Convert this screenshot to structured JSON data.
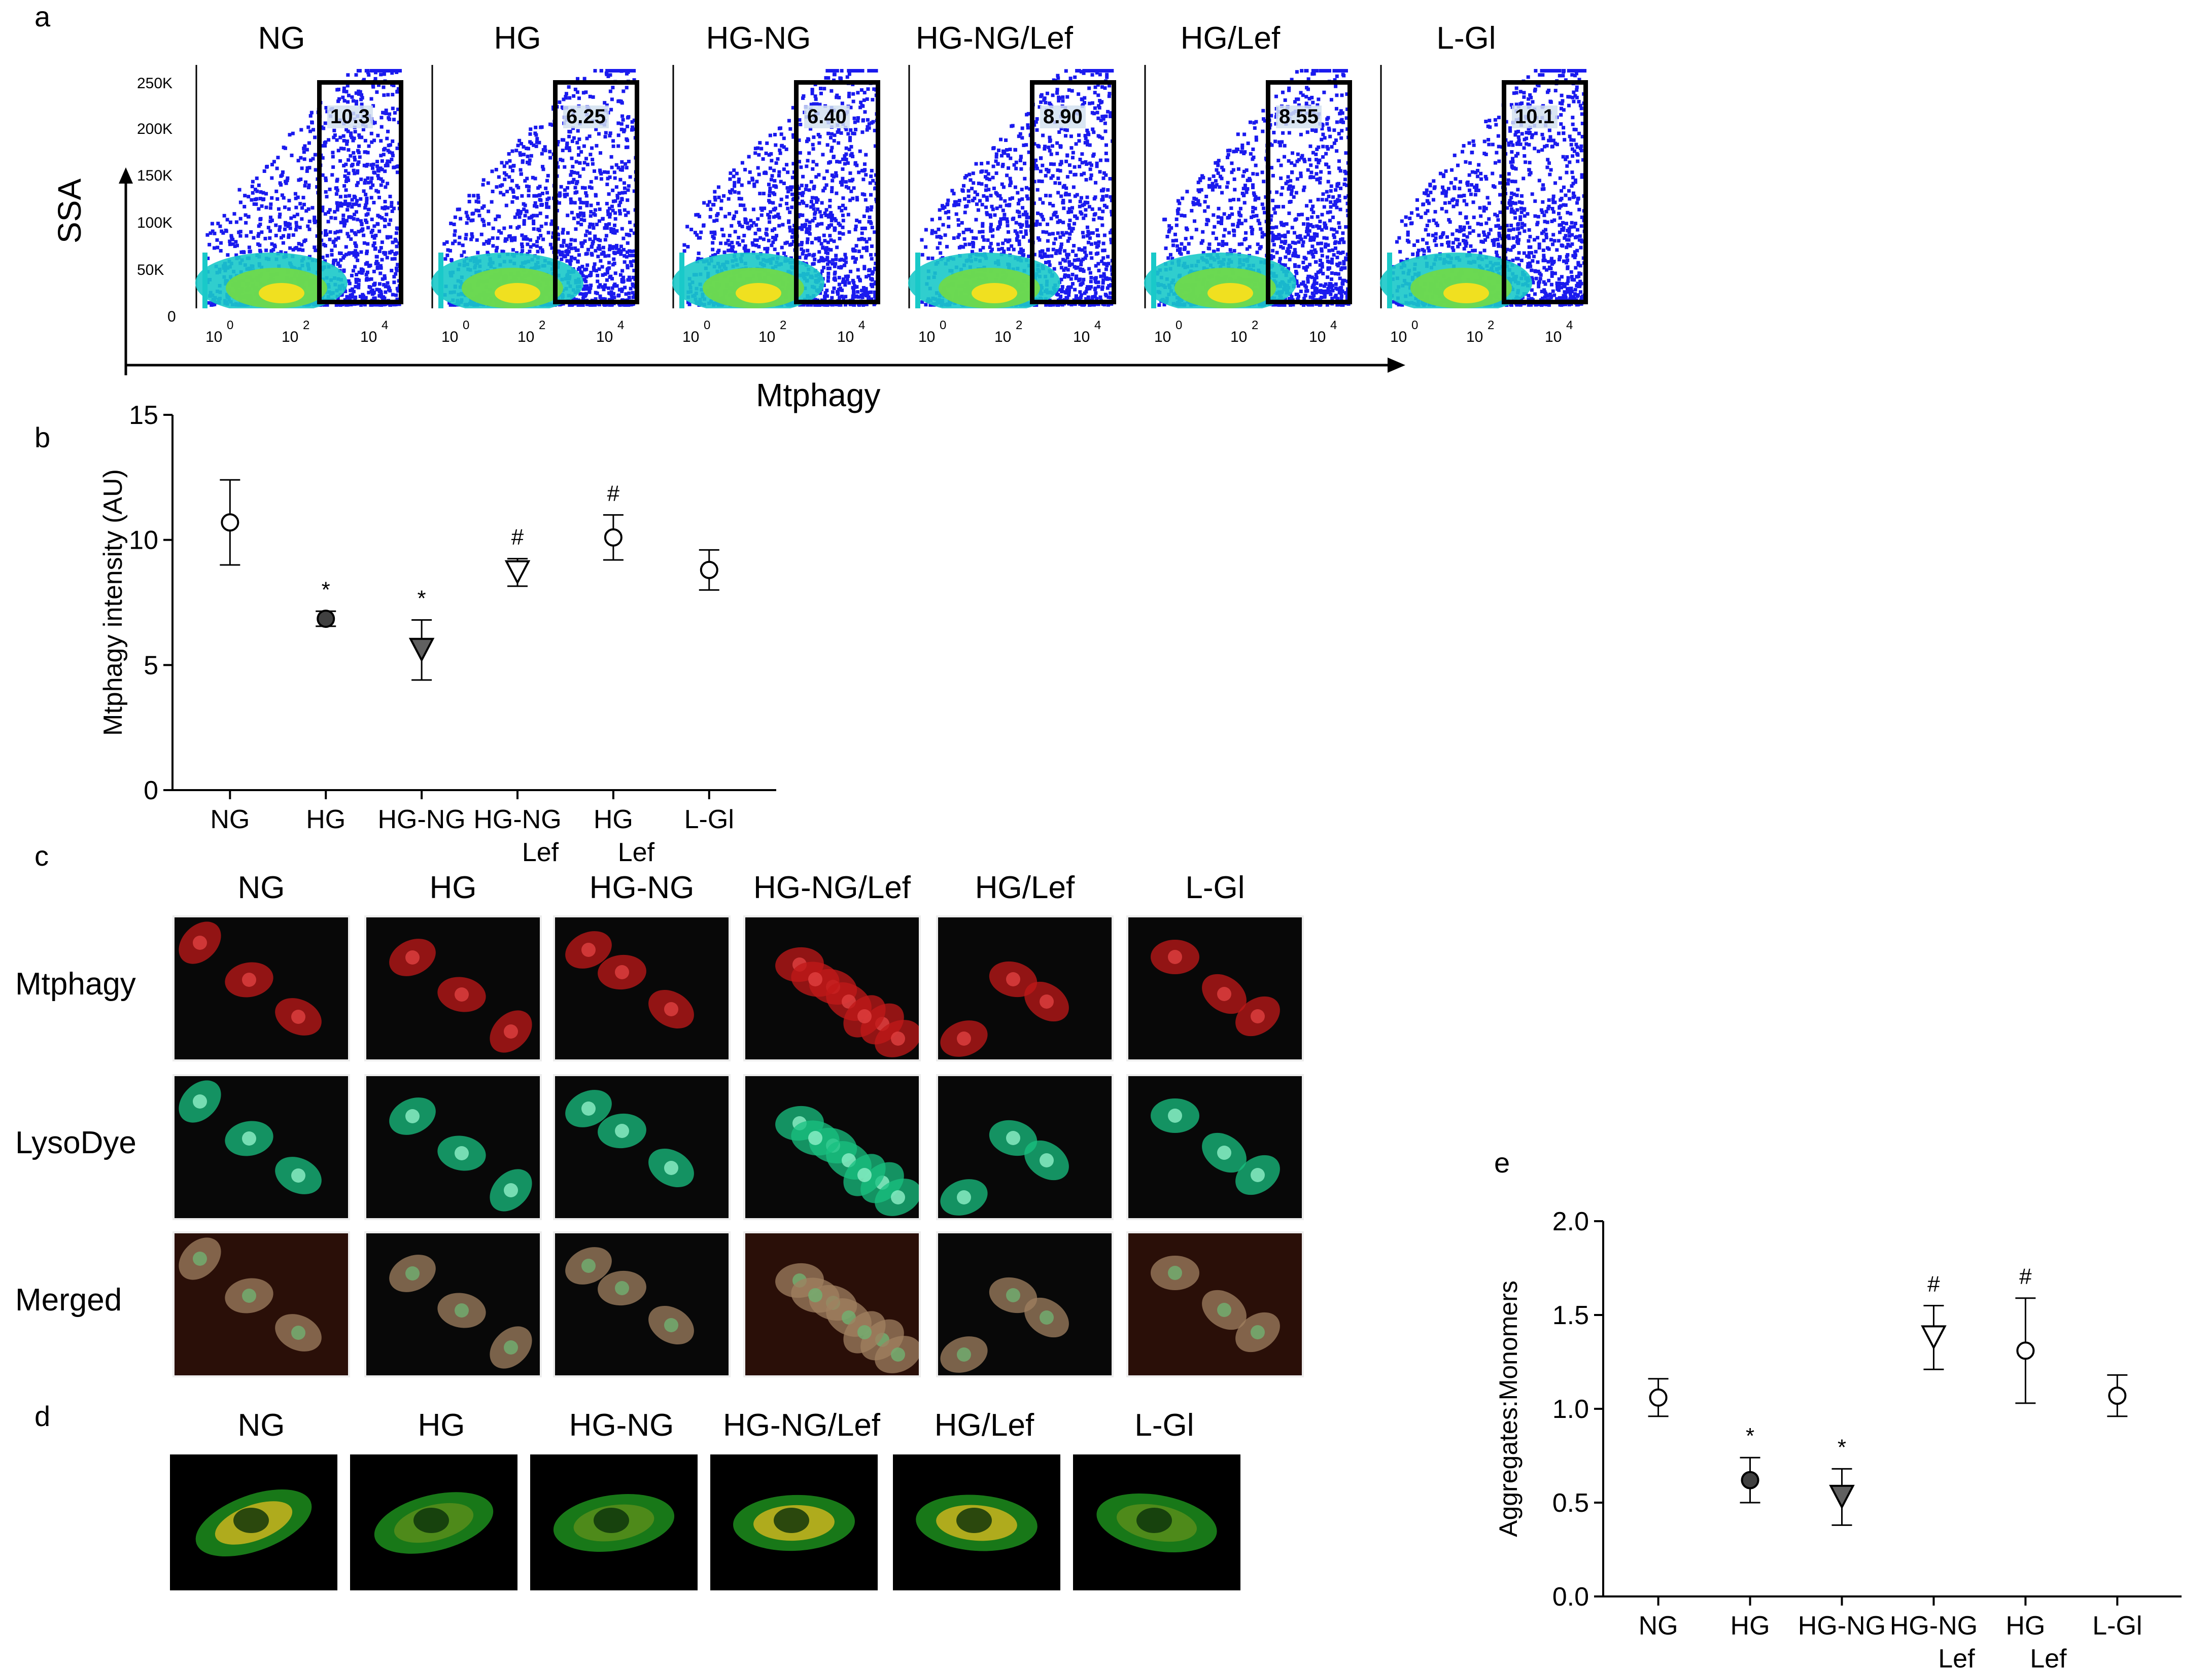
{
  "panel_letters": {
    "a": "a",
    "b": "b",
    "c": "c",
    "d": "d",
    "e": "e"
  },
  "groups": [
    "NG",
    "HG",
    "HG-NG",
    "HG-NG/Lef",
    "HG/Lef",
    "L-Gl"
  ],
  "panel_a": {
    "y_axis_title": "SSA",
    "x_axis_title": "Mtphagy",
    "y_ticks": [
      "250K",
      "200K",
      "150K",
      "100K",
      "50K",
      "0"
    ],
    "x_ticks": [
      "10",
      "0",
      "10",
      "2",
      "10",
      "4"
    ],
    "gate_values": [
      "10.3",
      "6.25",
      "6.40",
      "8.90",
      "8.55",
      "10.1"
    ],
    "colors": {
      "dots": "#1a1aee",
      "dense1": "#19c9c9",
      "dense2": "#6fd94b",
      "core": "#f0e020"
    }
  },
  "panel_c": {
    "rows": [
      "Mtphagy",
      "LysoDye",
      "Merged"
    ],
    "row_colors": [
      "#c01818",
      "#18c080",
      "#a08060"
    ]
  },
  "panel_d": {
    "image_colors": [
      "#20a020",
      "#f0c020"
    ]
  },
  "chart_data": [
    {
      "type": "scatter",
      "panel": "b",
      "title": "",
      "ylabel": "Mtphagy intensity (AU)",
      "xlabel": "",
      "ylim": [
        0,
        15
      ],
      "y_ticks": [
        "0",
        "5",
        "10",
        "15"
      ],
      "categories": [
        "NG",
        "HG",
        "HG-NG",
        "HG-NG Lef",
        "HG Lef",
        "L-Gl"
      ],
      "category_lines": [
        [
          "NG"
        ],
        [
          "HG"
        ],
        [
          "HG-NG"
        ],
        [
          "HG-NG",
          "Lef"
        ],
        [
          "HG",
          "Lef"
        ],
        [
          "L-Gl"
        ]
      ],
      "values": [
        10.7,
        6.85,
        5.6,
        8.7,
        10.1,
        8.8
      ],
      "errors": [
        1.7,
        0.3,
        1.2,
        0.55,
        0.9,
        0.8
      ],
      "markers": [
        "circle-open",
        "circle-filled",
        "triangle-filled",
        "triangle-open",
        "circle-open",
        "circle-open"
      ],
      "annotations": [
        "",
        "*",
        "*",
        "#",
        "#",
        ""
      ]
    },
    {
      "type": "scatter",
      "panel": "e",
      "title": "",
      "ylabel": "Aggregates:Monomers",
      "xlabel": "",
      "ylim": [
        0,
        2.0
      ],
      "y_ticks": [
        "0.0",
        "0.5",
        "1.0",
        "1.5",
        "2.0"
      ],
      "categories": [
        "NG",
        "HG",
        "HG-NG",
        "HG-NG Lef",
        "HG Lef",
        "L-Gl"
      ],
      "category_lines": [
        [
          "NG"
        ],
        [
          "HG"
        ],
        [
          "HG-NG"
        ],
        [
          "HG-NG",
          "Lef"
        ],
        [
          "HG",
          "Lef"
        ],
        [
          "L-Gl"
        ]
      ],
      "values": [
        1.06,
        0.62,
        0.53,
        1.38,
        1.31,
        1.07
      ],
      "errors": [
        0.1,
        0.12,
        0.15,
        0.17,
        0.28,
        0.11
      ],
      "markers": [
        "circle-open",
        "circle-filled",
        "triangle-filled",
        "triangle-open",
        "circle-open",
        "circle-open"
      ],
      "annotations": [
        "",
        "*",
        "*",
        "#",
        "#",
        ""
      ]
    }
  ]
}
